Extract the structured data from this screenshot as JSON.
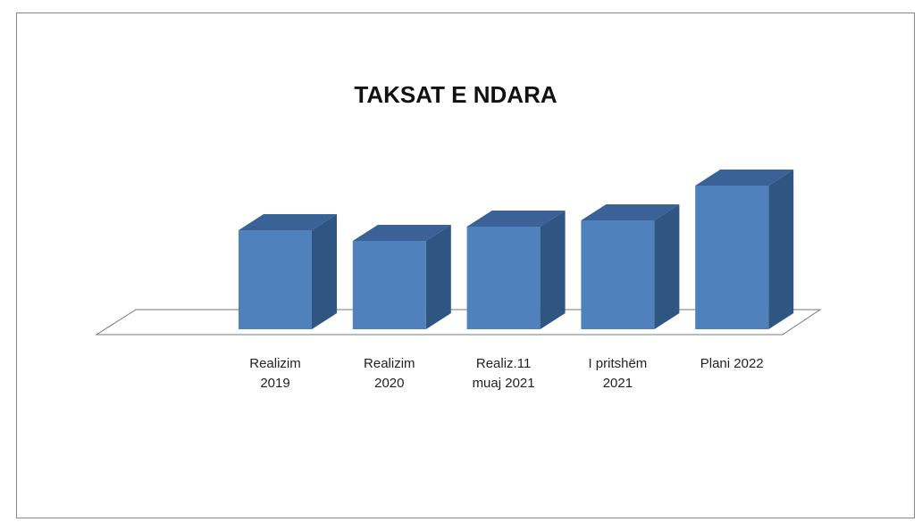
{
  "chart_data": {
    "type": "bar3d",
    "title": "TAKSAT E NDARA",
    "categories": [
      "Realizim 2019",
      "Realizim 2020",
      "Realiz.11 muaj 2021",
      "I pritshëm 2021",
      "Plani 2022"
    ],
    "values": [
      111,
      99,
      115,
      122,
      161
    ],
    "color": "#4f81bd",
    "ylim": [
      0,
      200
    ]
  }
}
